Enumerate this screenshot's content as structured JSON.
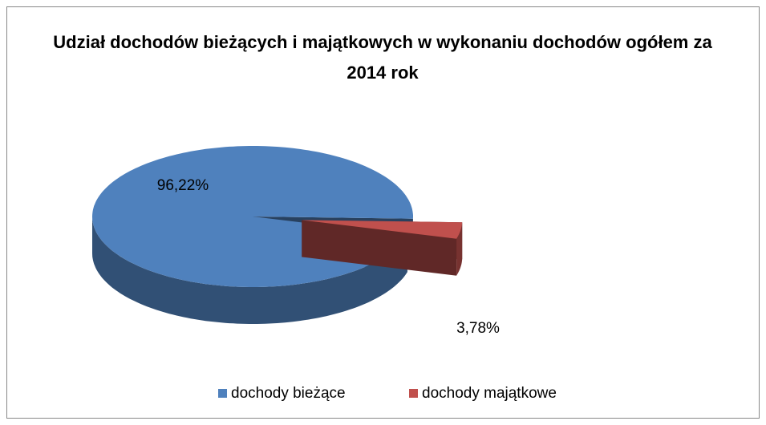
{
  "chart_data": {
    "type": "pie",
    "title": "Udział dochodów bieżących i majątkowych w wykonaniu dochodów ogółem za 2014 rok",
    "categories": [
      "dochody bieżące",
      "dochody majątkowe"
    ],
    "values": [
      96.22,
      3.78
    ],
    "value_labels": [
      "96,22%",
      "3,78%"
    ],
    "colors": [
      "#4f81bd",
      "#c0504d"
    ],
    "legend": "bottom"
  }
}
